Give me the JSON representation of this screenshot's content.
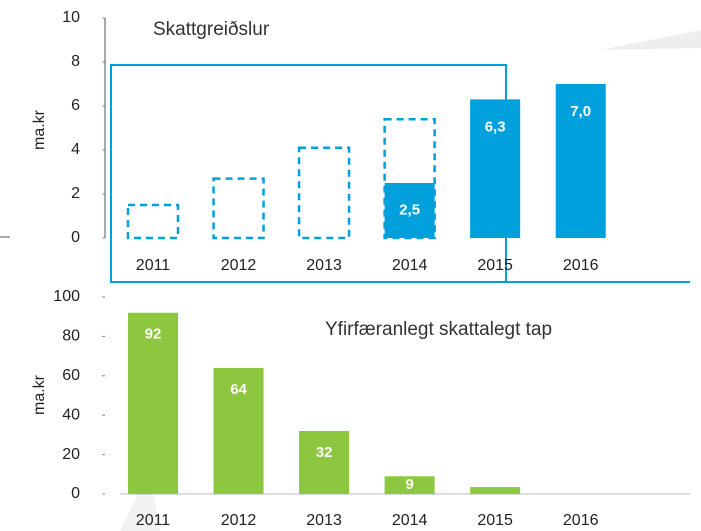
{
  "chart_data": [
    {
      "type": "bar",
      "title": "Skattgreiðslur",
      "ylabel": "ma.kr",
      "categories": [
        "2011",
        "2012",
        "2013",
        "2014",
        "2015",
        "2016"
      ],
      "series": [
        {
          "color": "#00a0dc",
          "style": "dashed",
          "values": [
            1.5,
            2.7,
            4.1,
            5.4,
            null,
            null
          ]
        },
        {
          "color": "#00a0dc",
          "style": "solid",
          "values": [
            null,
            null,
            null,
            2.5,
            6.3,
            7.0
          ],
          "value_labels": [
            null,
            null,
            null,
            "2,5",
            "6,3",
            "7,0"
          ]
        }
      ],
      "ylim": [
        0,
        10
      ],
      "yticks": [
        0,
        2,
        4,
        6,
        8,
        10
      ]
    },
    {
      "type": "bar",
      "title": "Yfirfæranlegt skattalegt tap",
      "ylabel": "ma.kr",
      "categories": [
        "2011",
        "2012",
        "2013",
        "2014",
        "2015",
        "2016"
      ],
      "series": [
        {
          "color": "#8dc63f",
          "style": "solid",
          "values": [
            92,
            64,
            32,
            9,
            3.5,
            null
          ],
          "value_labels": [
            "92",
            "64",
            "32",
            "9",
            null,
            null
          ]
        }
      ],
      "ylim": [
        0,
        100
      ],
      "yticks": [
        0,
        20,
        40,
        60,
        80,
        100
      ]
    }
  ]
}
